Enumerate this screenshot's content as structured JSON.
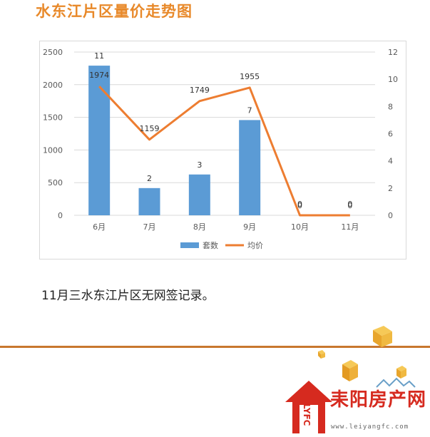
{
  "page_title": "水东江片区量价走势图",
  "note": "11月三水东江片区无网签记录。",
  "brand": {
    "name": "耒阳房产网",
    "url": "www.leiyangfc.com",
    "mark": "LYFC",
    "color": "#d62a1f"
  },
  "colors": {
    "bar": "#5b9bd5",
    "line": "#ed7d31",
    "title": "#e8892a"
  },
  "chart_data": {
    "type": "bar",
    "categories": [
      "6月",
      "7月",
      "8月",
      "9月",
      "10月",
      "11月"
    ],
    "series": [
      {
        "name": "套数",
        "type": "bar",
        "axis": "right",
        "values": [
          11,
          2,
          3,
          7,
          0,
          0
        ]
      },
      {
        "name": "均价",
        "type": "line",
        "axis": "left",
        "values": [
          1974,
          1159,
          1749,
          1955,
          0,
          0
        ]
      }
    ],
    "y_left": {
      "min": 0,
      "max": 2500,
      "ticks": [
        0,
        500,
        1000,
        1500,
        2000,
        2500
      ]
    },
    "y_right": {
      "min": 0,
      "max": 12,
      "ticks": [
        0,
        2,
        4,
        6,
        8,
        10,
        12
      ]
    },
    "grid": true,
    "legend": "bottom"
  }
}
